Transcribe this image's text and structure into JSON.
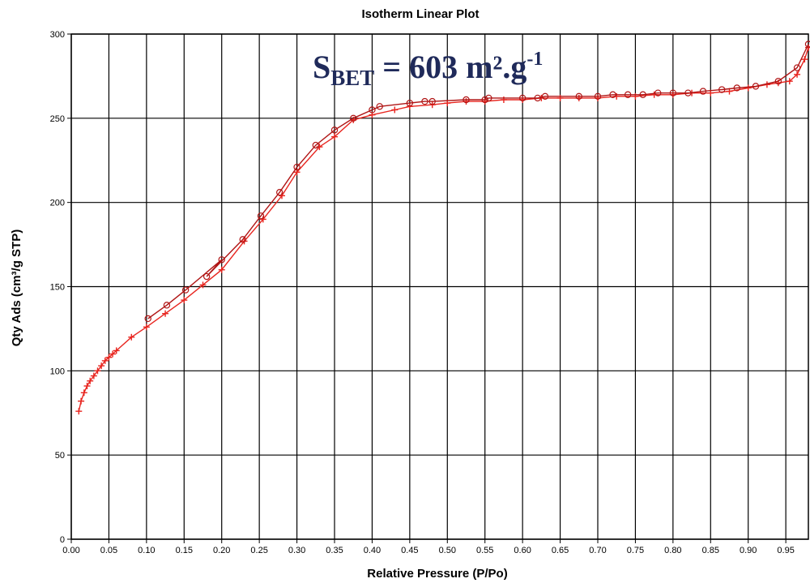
{
  "chart_data": {
    "type": "line",
    "title": "Isotherm Linear Plot",
    "xlabel": "Relative Pressure (P/Po)",
    "ylabel": "Qty Ads (cm³/g STP)",
    "xlim": [
      0.0,
      0.98
    ],
    "ylim": [
      0,
      300
    ],
    "x_ticks": [
      0.0,
      0.05,
      0.1,
      0.15,
      0.2,
      0.25,
      0.3,
      0.35,
      0.4,
      0.45,
      0.5,
      0.55,
      0.6,
      0.65,
      0.7,
      0.75,
      0.8,
      0.85,
      0.9,
      0.95
    ],
    "x_tick_labels": [
      "0.00",
      "0.05",
      "0.10",
      "0.15",
      "0.20",
      "0.25",
      "0.30",
      "0.35",
      "0.40",
      "0.45",
      "0.50",
      "0.55",
      "0.60",
      "0.65",
      "0.70",
      "0.75",
      "0.80",
      "0.85",
      "0.90",
      "0.95"
    ],
    "y_ticks": [
      0,
      50,
      100,
      150,
      200,
      250,
      300
    ],
    "y_tick_labels": [
      "0",
      "50",
      "100",
      "150",
      "200",
      "250",
      "300"
    ],
    "grid": true,
    "annotation": {
      "main": "S",
      "subscript": "BET",
      "rest": " = 603 m².g",
      "superscript": "-1"
    },
    "series": [
      {
        "marker": "plus",
        "color": "#e8251f",
        "points": [
          [
            0.01,
            76
          ],
          [
            0.013,
            82
          ],
          [
            0.017,
            87
          ],
          [
            0.021,
            91
          ],
          [
            0.025,
            94
          ],
          [
            0.03,
            97
          ],
          [
            0.035,
            100
          ],
          [
            0.04,
            103
          ],
          [
            0.045,
            106
          ],
          [
            0.05,
            108
          ],
          [
            0.055,
            110
          ],
          [
            0.06,
            112
          ],
          [
            0.08,
            120
          ],
          [
            0.1,
            126
          ],
          [
            0.125,
            134
          ],
          [
            0.15,
            142
          ],
          [
            0.175,
            151
          ],
          [
            0.2,
            160
          ],
          [
            0.23,
            177
          ],
          [
            0.255,
            190
          ],
          [
            0.28,
            204
          ],
          [
            0.3,
            218
          ],
          [
            0.33,
            233
          ],
          [
            0.35,
            239
          ],
          [
            0.375,
            249
          ],
          [
            0.4,
            252
          ],
          [
            0.43,
            255
          ],
          [
            0.45,
            257
          ],
          [
            0.48,
            258
          ],
          [
            0.5,
            259
          ],
          [
            0.525,
            260
          ],
          [
            0.55,
            260
          ],
          [
            0.575,
            261
          ],
          [
            0.6,
            261
          ],
          [
            0.625,
            262
          ],
          [
            0.65,
            262
          ],
          [
            0.675,
            262
          ],
          [
            0.7,
            262
          ],
          [
            0.725,
            263
          ],
          [
            0.75,
            263
          ],
          [
            0.775,
            264
          ],
          [
            0.8,
            264
          ],
          [
            0.825,
            265
          ],
          [
            0.85,
            265
          ],
          [
            0.875,
            266
          ],
          [
            0.9,
            268
          ],
          [
            0.925,
            270
          ],
          [
            0.94,
            271
          ],
          [
            0.955,
            272
          ],
          [
            0.965,
            276
          ],
          [
            0.975,
            285
          ],
          [
            0.98,
            292
          ]
        ]
      },
      {
        "marker": "circle",
        "color": "#b01515",
        "points": [
          [
            0.98,
            294
          ],
          [
            0.965,
            280
          ],
          [
            0.94,
            272
          ],
          [
            0.91,
            269
          ],
          [
            0.885,
            268
          ],
          [
            0.865,
            267
          ],
          [
            0.84,
            266
          ],
          [
            0.82,
            265
          ],
          [
            0.8,
            265
          ],
          [
            0.78,
            265
          ],
          [
            0.76,
            264
          ],
          [
            0.74,
            264
          ],
          [
            0.72,
            264
          ],
          [
            0.7,
            263
          ],
          [
            0.675,
            263
          ],
          [
            0.63,
            263
          ],
          [
            0.62,
            262
          ],
          [
            0.6,
            262
          ],
          [
            0.555,
            262
          ],
          [
            0.55,
            261
          ],
          [
            0.525,
            261
          ],
          [
            0.48,
            260
          ],
          [
            0.47,
            260
          ],
          [
            0.45,
            259
          ],
          [
            0.41,
            257
          ],
          [
            0.4,
            255
          ],
          [
            0.375,
            250
          ],
          [
            0.35,
            243
          ],
          [
            0.325,
            234
          ],
          [
            0.3,
            221
          ],
          [
            0.277,
            206
          ],
          [
            0.252,
            192
          ],
          [
            0.228,
            178
          ],
          [
            0.18,
            156
          ],
          [
            0.2,
            166
          ],
          [
            0.152,
            148
          ],
          [
            0.127,
            139
          ],
          [
            0.102,
            131
          ]
        ]
      }
    ]
  }
}
